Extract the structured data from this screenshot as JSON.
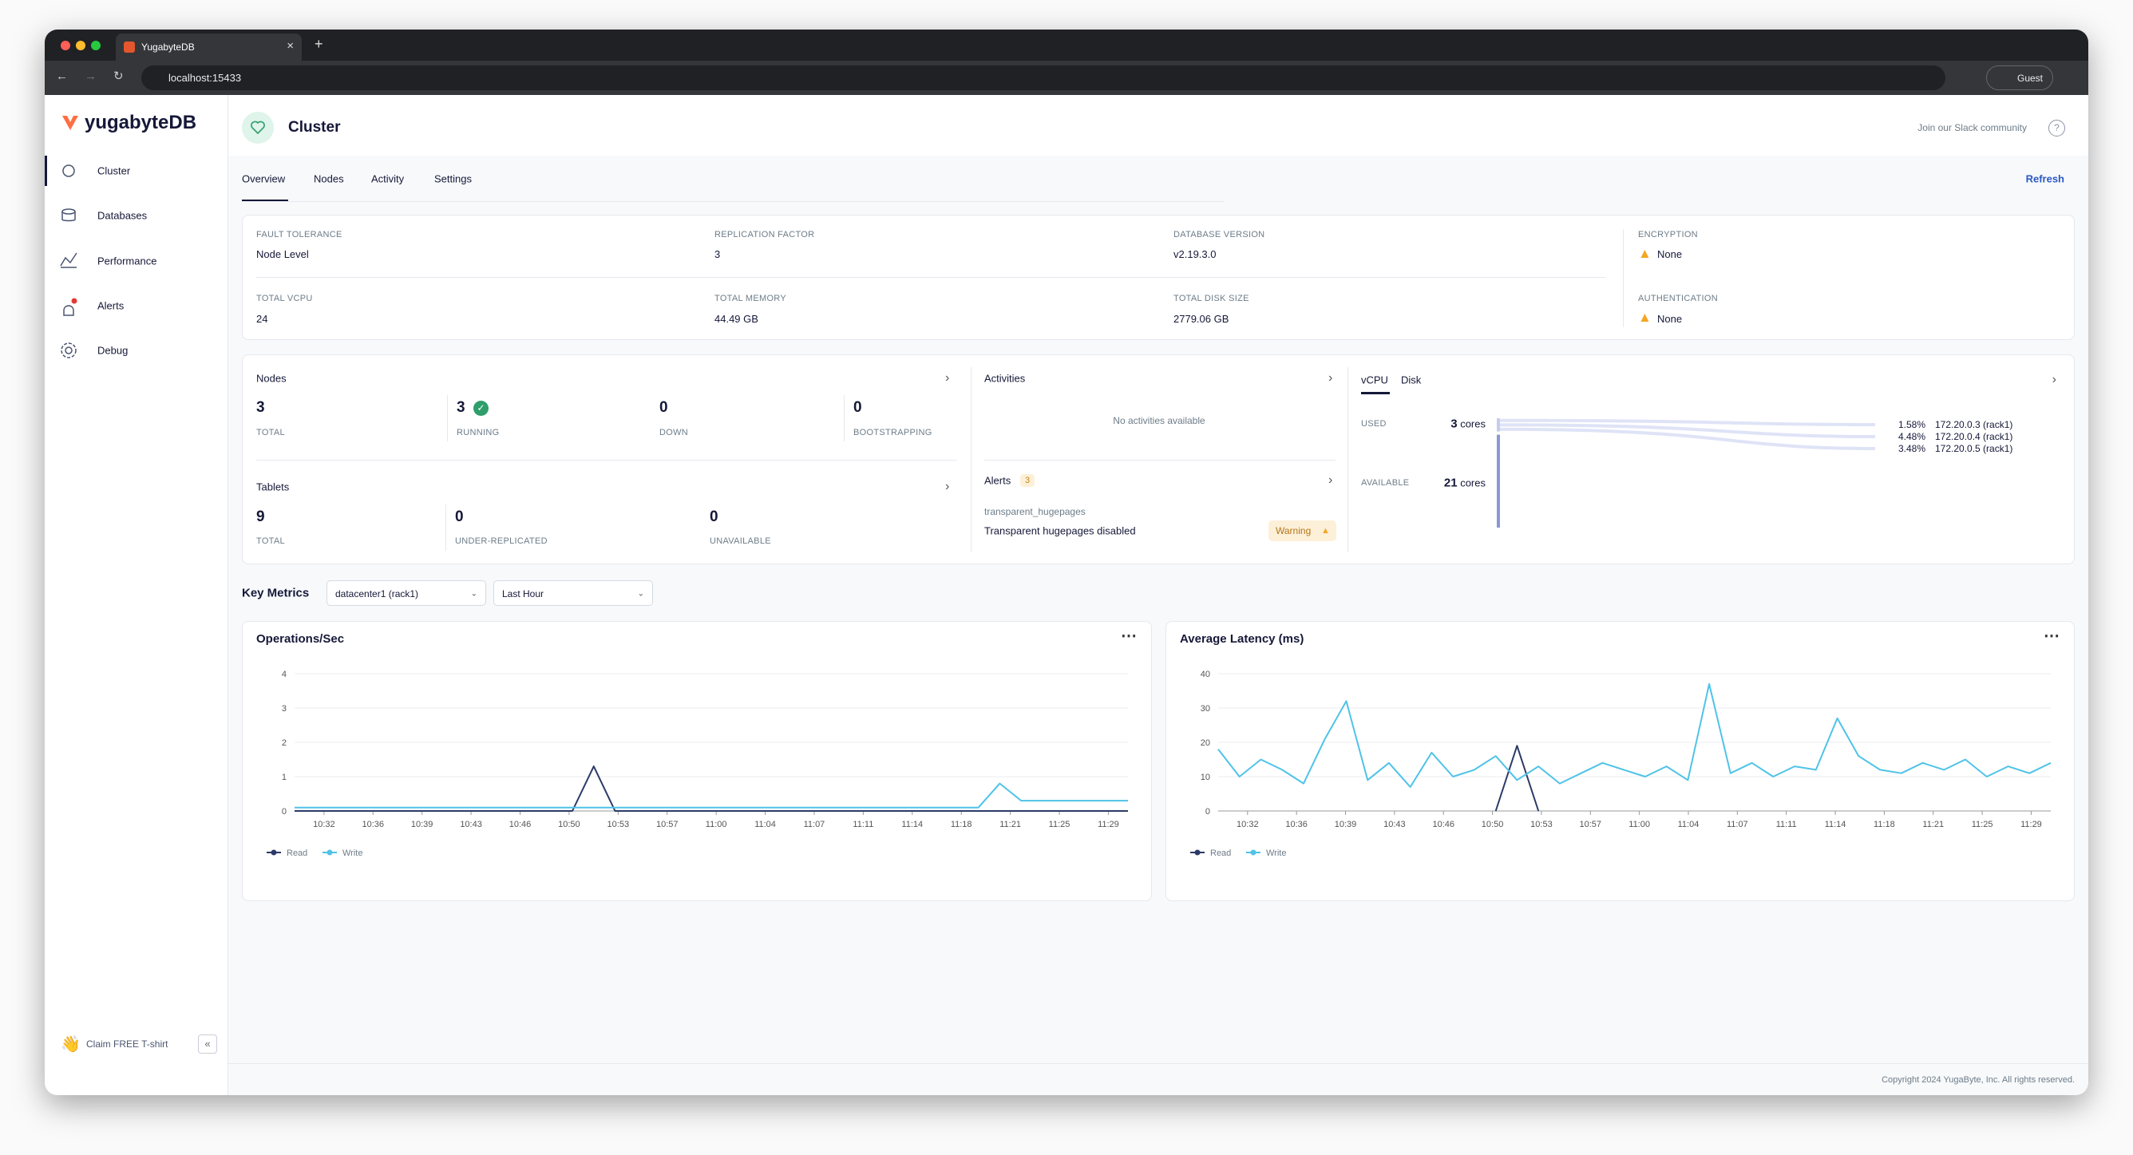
{
  "browser": {
    "tab_title": "YugabyteDB",
    "url": "localhost:15433",
    "profile": "Guest"
  },
  "sidebar": {
    "logo": "yugabyteDB",
    "nav": [
      "Cluster",
      "Databases",
      "Performance",
      "Alerts",
      "Debug"
    ],
    "promo": "Claim FREE T-shirt"
  },
  "header": {
    "title": "Cluster",
    "slack": "Join our Slack community"
  },
  "tabs": [
    "Overview",
    "Nodes",
    "Activity",
    "Settings"
  ],
  "refresh": "Refresh",
  "info": [
    {
      "label": "FAULT TOLERANCE",
      "value": "Node Level"
    },
    {
      "label": "REPLICATION FACTOR",
      "value": "3"
    },
    {
      "label": "DATABASE VERSION",
      "value": "v2.19.3.0"
    },
    {
      "label": "ENCRYPTION",
      "value": "None"
    },
    {
      "label": "TOTAL VCPU",
      "value": "24"
    },
    {
      "label": "TOTAL MEMORY",
      "value": "44.49 GB"
    },
    {
      "label": "TOTAL DISK SIZE",
      "value": "2779.06 GB"
    },
    {
      "label": "AUTHENTICATION",
      "value": "None"
    }
  ],
  "nodes": {
    "title": "Nodes",
    "stats": [
      {
        "value": 3,
        "label": "TOTAL"
      },
      {
        "value": 3,
        "label": "RUNNING"
      },
      {
        "value": 0,
        "label": "DOWN"
      },
      {
        "value": 0,
        "label": "BOOTSTRAPPING"
      }
    ]
  },
  "tablets": {
    "title": "Tablets",
    "stats": [
      {
        "value": 9,
        "label": "TOTAL"
      },
      {
        "value": 0,
        "label": "UNDER-REPLICATED"
      },
      {
        "value": 0,
        "label": "UNAVAILABLE"
      }
    ]
  },
  "activities": {
    "title": "Activities",
    "empty": "No activities available"
  },
  "alerts": {
    "title": "Alerts",
    "count": 3,
    "items": [
      {
        "name": "transparent_hugepages",
        "description": "Transparent hugepages disabled",
        "severity": "Warning"
      }
    ]
  },
  "resources": {
    "tabs": [
      "vCPU",
      "Disk"
    ],
    "used": {
      "label": "USED",
      "value": 3,
      "unit": "cores"
    },
    "available": {
      "label": "AVAILABLE",
      "value": 21,
      "unit": "cores"
    },
    "nodes": [
      {
        "percent": "1.58%",
        "name": "172.20.0.3 (rack1)"
      },
      {
        "percent": "4.48%",
        "name": "172.20.0.4 (rack1)"
      },
      {
        "percent": "3.48%",
        "name": "172.20.0.5 (rack1)"
      }
    ]
  },
  "key_metrics": {
    "title": "Key Metrics",
    "filters": [
      "datacenter1 (rack1)",
      "Last Hour"
    ]
  },
  "charts": [
    {
      "type": "line",
      "title": "Operations/Sec",
      "xticks": [
        "10:32",
        "10:36",
        "10:39",
        "10:43",
        "10:46",
        "10:50",
        "10:53",
        "10:57",
        "11:00",
        "11:04",
        "11:07",
        "11:11",
        "11:14",
        "11:18",
        "11:21",
        "11:25",
        "11:29"
      ],
      "ylim": [
        0,
        4
      ],
      "yticks": [
        0,
        1,
        2,
        3,
        4
      ],
      "grid": true,
      "series": [
        {
          "name": "Read",
          "color": "#2b3a67",
          "values": [
            0,
            0,
            0,
            0,
            0,
            0,
            0,
            0,
            0,
            0,
            0,
            0,
            0,
            0,
            1.3,
            0,
            0,
            0,
            0,
            0,
            0,
            0,
            0,
            0,
            0,
            0,
            0,
            0,
            0,
            0,
            0,
            0,
            0,
            0,
            0,
            0,
            0,
            0,
            0,
            0
          ]
        },
        {
          "name": "Write",
          "color": "#4fc3e8",
          "values": [
            0.1,
            0.1,
            0.1,
            0.1,
            0.1,
            0.1,
            0.1,
            0.1,
            0.1,
            0.1,
            0.1,
            0.1,
            0.1,
            0.1,
            0.1,
            0.1,
            0.1,
            0.1,
            0.1,
            0.1,
            0.1,
            0.1,
            0.1,
            0.1,
            0.1,
            0.1,
            0.1,
            0.1,
            0.1,
            0.1,
            0.1,
            0.1,
            0.1,
            0.8,
            0.3,
            0.3,
            0.3,
            0.3,
            0.3,
            0.3
          ]
        }
      ]
    },
    {
      "type": "line",
      "title": "Average Latency (ms)",
      "xticks": [
        "10:32",
        "10:36",
        "10:39",
        "10:43",
        "10:46",
        "10:50",
        "10:53",
        "10:57",
        "11:00",
        "11:04",
        "11:07",
        "11:11",
        "11:14",
        "11:18",
        "11:21",
        "11:25",
        "11:29"
      ],
      "ylim": [
        0,
        40
      ],
      "yticks": [
        0,
        10,
        20,
        30,
        40
      ],
      "grid": true,
      "series": [
        {
          "name": "Read",
          "color": "#2b3a67",
          "values": [
            null,
            null,
            null,
            null,
            null,
            null,
            null,
            null,
            null,
            null,
            null,
            null,
            null,
            0,
            19,
            0,
            null,
            null,
            null,
            null,
            null,
            null,
            null,
            null,
            null,
            null,
            null,
            null,
            null,
            null,
            null,
            null,
            null,
            null,
            null,
            null,
            null,
            null,
            null,
            null
          ]
        },
        {
          "name": "Write",
          "color": "#4fc3e8",
          "values": [
            18,
            10,
            15,
            12,
            8,
            21,
            32,
            9,
            14,
            7,
            17,
            10,
            12,
            16,
            9,
            13,
            8,
            11,
            14,
            12,
            10,
            13,
            9,
            37,
            11,
            14,
            10,
            13,
            12,
            27,
            16,
            12,
            11,
            14,
            12,
            15,
            10,
            13,
            11,
            14
          ]
        }
      ]
    }
  ],
  "footer": "Copyright 2024 YugaByte, Inc. All rights reserved."
}
